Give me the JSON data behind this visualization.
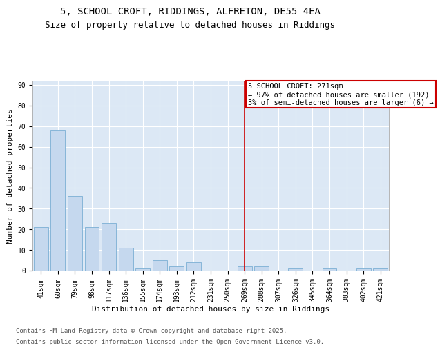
{
  "title1": "5, SCHOOL CROFT, RIDDINGS, ALFRETON, DE55 4EA",
  "title2": "Size of property relative to detached houses in Riddings",
  "xlabel": "Distribution of detached houses by size in Riddings",
  "ylabel": "Number of detached properties",
  "bar_labels": [
    "41sqm",
    "60sqm",
    "79sqm",
    "98sqm",
    "117sqm",
    "136sqm",
    "155sqm",
    "174sqm",
    "193sqm",
    "212sqm",
    "231sqm",
    "250sqm",
    "269sqm",
    "288sqm",
    "307sqm",
    "326sqm",
    "345sqm",
    "364sqm",
    "383sqm",
    "402sqm",
    "421sqm"
  ],
  "bar_values": [
    21,
    68,
    36,
    21,
    23,
    11,
    1,
    5,
    2,
    4,
    0,
    0,
    2,
    2,
    0,
    1,
    0,
    1,
    0,
    1,
    1
  ],
  "bar_color": "#c5d8ee",
  "bar_edgecolor": "#7aafd4",
  "background_color": "#dce8f5",
  "grid_color": "#ffffff",
  "vline_idx": 12,
  "vline_color": "#cc0000",
  "annotation_title": "5 SCHOOL CROFT: 271sqm",
  "annotation_line1": "← 97% of detached houses are smaller (192)",
  "annotation_line2": "3% of semi-detached houses are larger (6) →",
  "annotation_box_color": "#cc0000",
  "ylim": [
    0,
    92
  ],
  "yticks": [
    0,
    10,
    20,
    30,
    40,
    50,
    60,
    70,
    80,
    90
  ],
  "footnote1": "Contains HM Land Registry data © Crown copyright and database right 2025.",
  "footnote2": "Contains public sector information licensed under the Open Government Licence v3.0.",
  "title_fontsize": 10,
  "subtitle_fontsize": 9,
  "axis_label_fontsize": 8,
  "tick_fontsize": 7,
  "annotation_fontsize": 7.5,
  "footnote_fontsize": 6.5
}
